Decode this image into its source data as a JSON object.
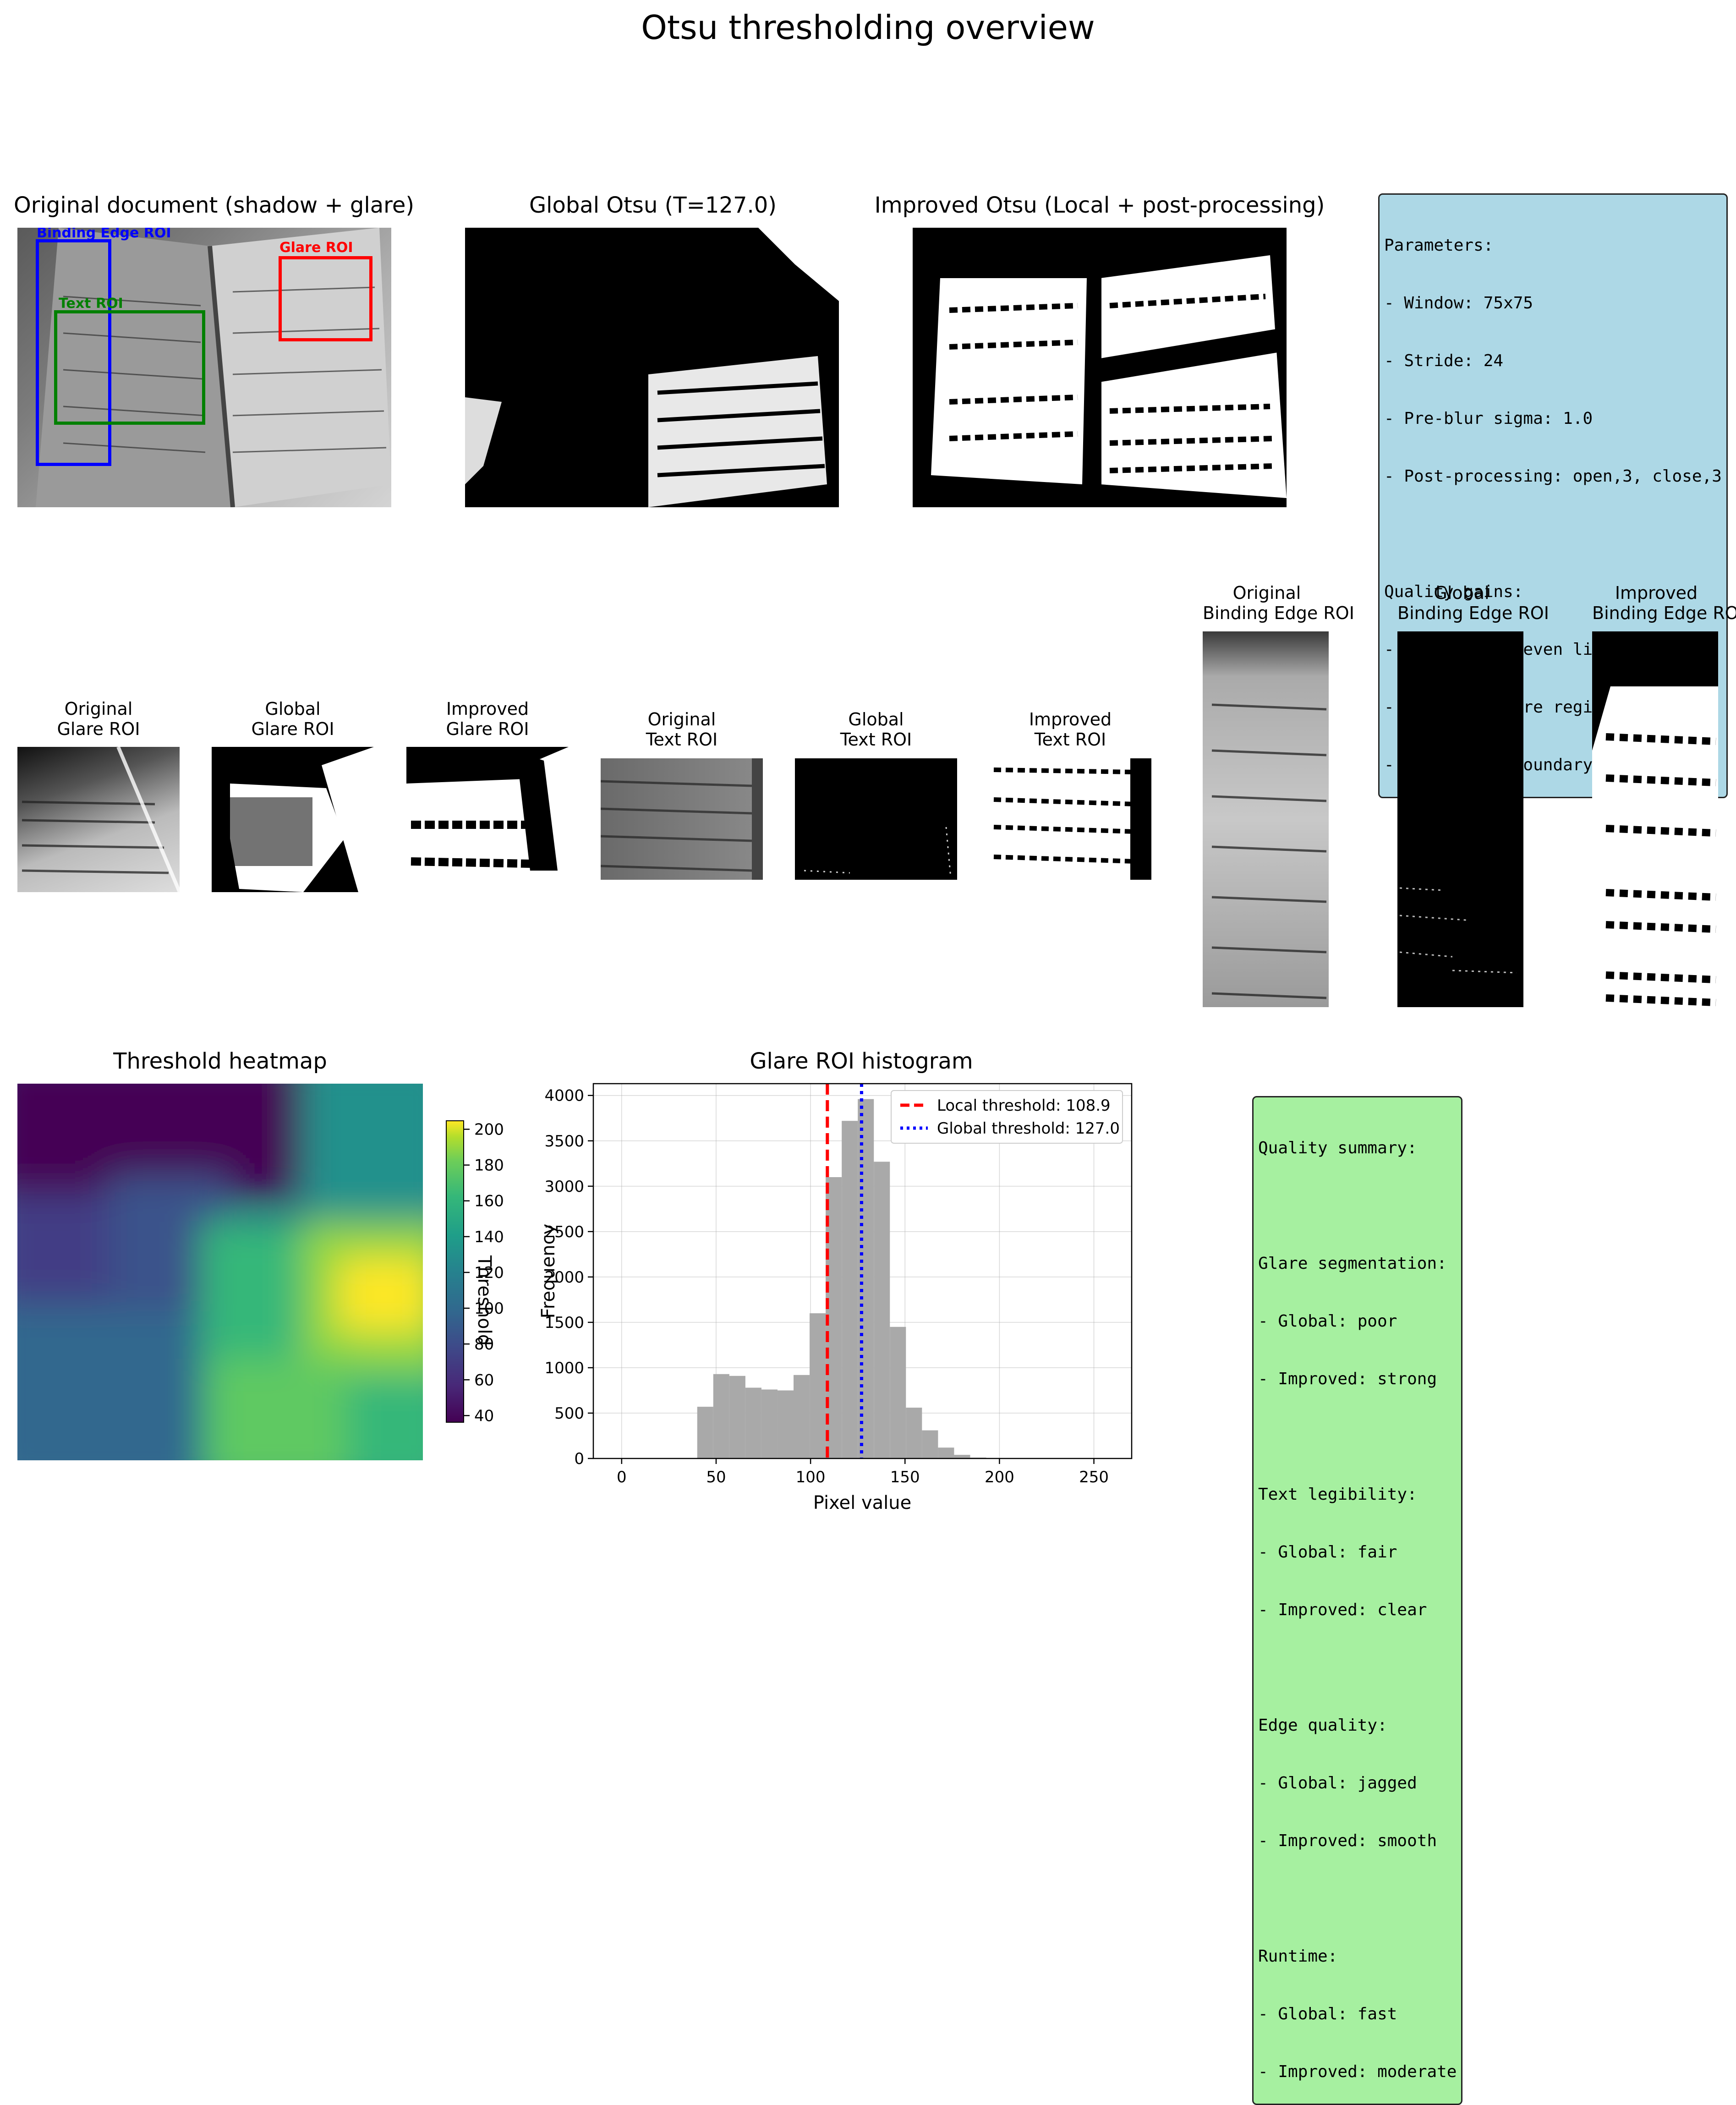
{
  "figure": {
    "title": "Otsu thresholding overview"
  },
  "panels": {
    "original": {
      "title": "Original document (shadow + glare)",
      "rois": [
        {
          "label": "Binding Edge ROI",
          "color": "#0000ff"
        },
        {
          "label": "Glare ROI",
          "color": "#ff0000"
        },
        {
          "label": "Text ROI",
          "color": "#008000"
        }
      ]
    },
    "global": {
      "title": "Global Otsu (T=127.0)"
    },
    "improved": {
      "title": "Improved Otsu (Local + post-processing)"
    }
  },
  "params_box": {
    "lines": [
      "Parameters:",
      "- Window: 75x75",
      "- Stride: 24",
      "- Pre-blur sigma: 1.0",
      "- Post-processing: open,3, close,3",
      "",
      "Quality gains:",
      "- Adapts to uneven lighting",
      "- Restores glare regions",
      "- Suppresses boundary artifacts"
    ],
    "bg_color": "#add8e6"
  },
  "roi_panels": [
    {
      "line1": "Original",
      "line2": "Glare ROI"
    },
    {
      "line1": "Global",
      "line2": "Glare ROI"
    },
    {
      "line1": "Improved",
      "line2": "Glare ROI"
    },
    {
      "line1": "Original",
      "line2": "Text ROI"
    },
    {
      "line1": "Global",
      "line2": "Text ROI"
    },
    {
      "line1": "Improved",
      "line2": "Text ROI"
    },
    {
      "line1": "Original",
      "line2": "Binding Edge ROI"
    },
    {
      "line1": "Global",
      "line2": "Binding Edge ROI"
    },
    {
      "line1": "Improved",
      "line2": "Binding Edge ROI"
    }
  ],
  "chart_data": [
    {
      "type": "heatmap",
      "title": "Threshold heatmap",
      "colorbar_label": "Threshold",
      "colormap": "viridis",
      "vmin": 36,
      "vmax": 205,
      "colorbar_ticks": [
        40,
        60,
        80,
        100,
        120,
        140,
        160,
        180,
        200
      ]
    },
    {
      "type": "bar",
      "title": "Glare ROI histogram",
      "xlabel": "Pixel value",
      "ylabel": "Frequency",
      "xlim": [
        -15,
        270
      ],
      "ylim": [
        0,
        4130
      ],
      "xticks": [
        0,
        50,
        100,
        150,
        200,
        250
      ],
      "yticks": [
        0,
        500,
        1000,
        1500,
        2000,
        2500,
        3000,
        3500,
        4000
      ],
      "bin_width": 8.5,
      "bins": [
        [
          40,
          570
        ],
        [
          48.5,
          930
        ],
        [
          57,
          910
        ],
        [
          65.5,
          780
        ],
        [
          74,
          760
        ],
        [
          82.5,
          750
        ],
        [
          91,
          920
        ],
        [
          99.5,
          1600
        ],
        [
          108,
          3100
        ],
        [
          116.5,
          3720
        ],
        [
          125,
          3960
        ],
        [
          133.5,
          3270
        ],
        [
          142,
          1450
        ],
        [
          150.5,
          560
        ],
        [
          159,
          310
        ],
        [
          167.5,
          120
        ],
        [
          176,
          40
        ],
        [
          184.5,
          10
        ]
      ],
      "bar_color": "#a9a9a9",
      "grid": true,
      "legend_position": "upper right",
      "lines": [
        {
          "label": "Local threshold: 108.9",
          "x": 108.9,
          "color": "#ff0000",
          "style": "dashed"
        },
        {
          "label": "Global threshold: 127.0",
          "x": 127.0,
          "color": "#0000ff",
          "style": "dotted"
        }
      ]
    }
  ],
  "summary_box": {
    "lines": [
      "Quality summary:",
      "",
      "Glare segmentation:",
      "- Global: poor",
      "- Improved: strong",
      "",
      "Text legibility:",
      "- Global: fair",
      "- Improved: clear",
      "",
      "Edge quality:",
      "- Global: jagged",
      "- Improved: smooth",
      "",
      "Runtime:",
      "- Global: fast",
      "- Improved: moderate"
    ],
    "bg_color": "#a6f0a0"
  }
}
